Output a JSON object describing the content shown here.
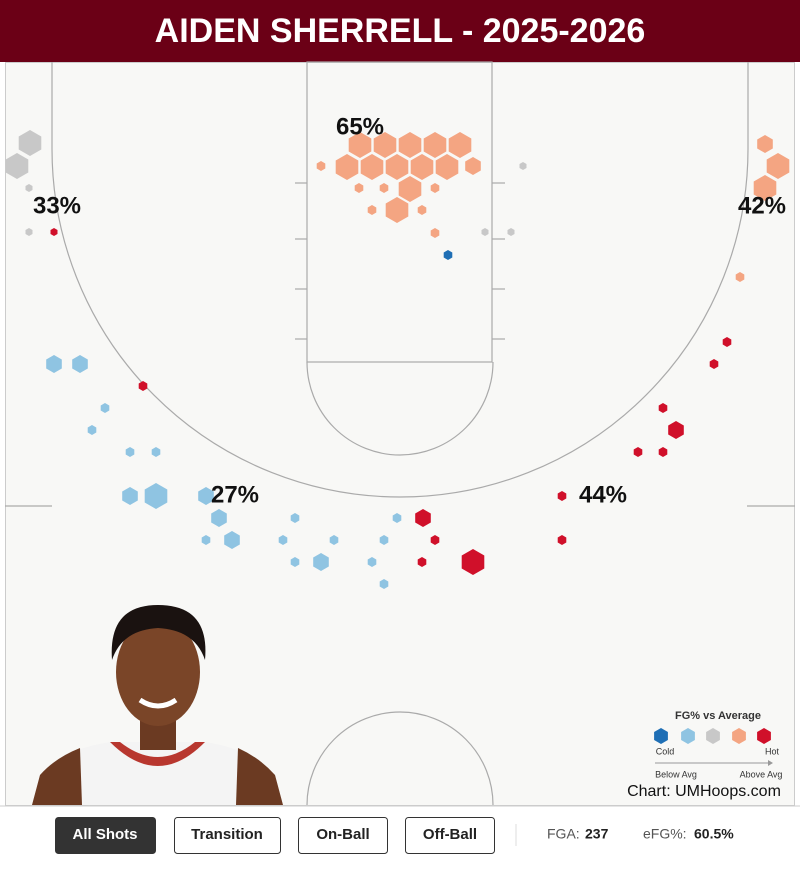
{
  "header": {
    "title": "AIDEN SHERRELL - 2025-2026"
  },
  "zones": [
    "65%",
    "33%",
    "42%",
    "27%",
    "44%"
  ],
  "legend": {
    "title": "FG% vs Average",
    "cold": "Cold",
    "hot": "Hot",
    "below": "Below Avg",
    "above": "Above Avg"
  },
  "credit": "Chart: UMHoops.com",
  "filters": [
    "All Shots",
    "Transition",
    "On-Ball",
    "Off-Ball"
  ],
  "stats": {
    "fga": {
      "label": "FGA:",
      "value": "237"
    },
    "efg": {
      "label": "eFG%:",
      "value": "60.5%"
    }
  }
}
